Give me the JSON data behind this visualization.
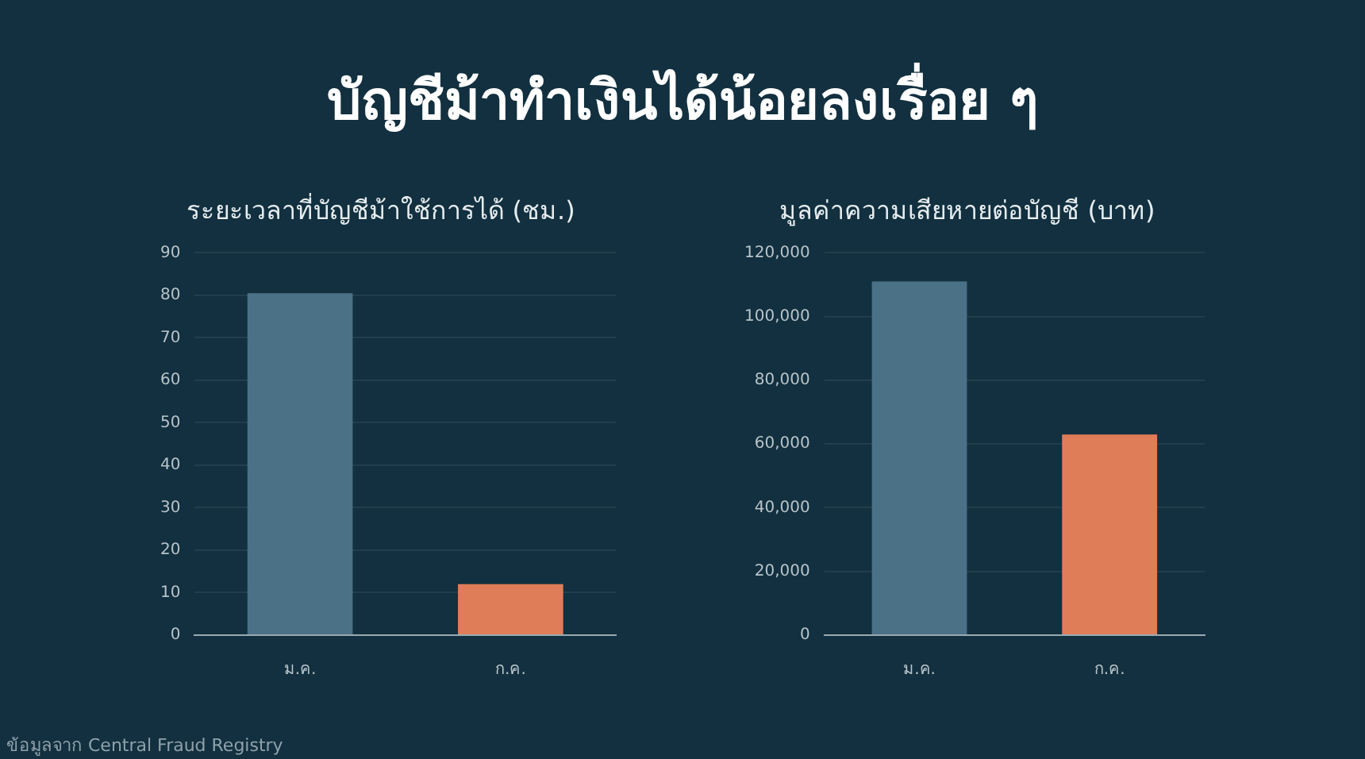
{
  "chart_data": [
    {
      "type": "other",
      "title": "บัญชีม้าทำเงินได้น้อยลงเรื่อย ๆ",
      "annotations": [
        "ข้อมูลจาก Central Fraud Registry"
      ]
    },
    {
      "type": "bar",
      "title": "ระยะเวลาที่บัญชีม้าใช้การได้ (ชม.)",
      "categories": [
        "ม.ค.",
        "ก.ค."
      ],
      "values": [
        80.5,
        12
      ],
      "colors": [
        "#4a7185",
        "#df7d58"
      ],
      "ylim": [
        0,
        90
      ],
      "yticks": [
        0,
        10,
        20,
        30,
        40,
        50,
        60,
        70,
        80,
        90
      ],
      "grid": "y"
    },
    {
      "type": "bar",
      "title": "มูลค่าความเสียหายต่อบัญชี (บาท)",
      "categories": [
        "ม.ค.",
        "ก.ค."
      ],
      "values": [
        111000,
        63000
      ],
      "colors": [
        "#4a7185",
        "#df7d58"
      ],
      "ylim": [
        0,
        120000
      ],
      "yticks": [
        0,
        {
          "value": 20000,
          "label": "20,000"
        },
        {
          "value": 40000,
          "label": "40,000"
        },
        {
          "value": 60000,
          "label": "60,000"
        },
        {
          "value": 80000,
          "label": "80,000"
        },
        {
          "value": 100000,
          "label": "100,000"
        },
        {
          "value": 120000,
          "label": "120,000"
        }
      ],
      "grid": "y"
    }
  ]
}
